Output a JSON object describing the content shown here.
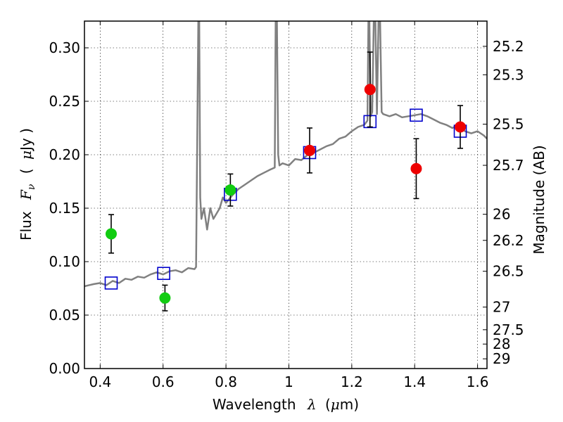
{
  "chart_data": {
    "type": "scatter",
    "title": "",
    "xlabel_prefix": "Wavelength",
    "xlabel_symbol": "λ",
    "xlabel_unit_open": "(",
    "xlabel_unit_mu": "μ",
    "xlabel_unit_rest": "m)",
    "ylabel_prefix": "Flux",
    "ylabel_symbol": "F",
    "ylabel_subscript": "ν",
    "ylabel_unit_open": "(",
    "ylabel_unit_mu": "μ",
    "ylabel_unit_rest": "Jy )",
    "y2label": "Magnitude (AB)",
    "xlim": [
      0.35,
      1.63
    ],
    "ylim": [
      0.0,
      0.325
    ],
    "grid": true,
    "x_ticks": [
      0.4,
      0.6,
      0.8,
      1.0,
      1.2,
      1.4,
      1.6
    ],
    "x_tick_labels": [
      "0.4",
      "0.6",
      "0.8",
      "1",
      "1.2",
      "1.4",
      "1.6"
    ],
    "y_ticks": [
      0.0,
      0.05,
      0.1,
      0.15,
      0.2,
      0.25,
      0.3
    ],
    "y_tick_labels": [
      "0.00",
      "0.05",
      "0.10",
      "0.15",
      "0.20",
      "0.25",
      "0.30"
    ],
    "y2_ticks": [
      {
        "label": "25.2",
        "flux": 0.3014
      },
      {
        "label": "25.3",
        "flux": 0.2748
      },
      {
        "label": "25.5",
        "flux": 0.2286
      },
      {
        "label": "25.7",
        "flux": 0.1901
      },
      {
        "label": "26",
        "flux": 0.1443
      },
      {
        "label": "26.2",
        "flux": 0.1199
      },
      {
        "label": "26.5",
        "flux": 0.091
      },
      {
        "label": "27",
        "flux": 0.0575
      },
      {
        "label": "27.5",
        "flux": 0.0363
      },
      {
        "label": "28",
        "flux": 0.0229
      },
      {
        "label": "29",
        "flux": 0.0091
      }
    ],
    "model_spectrum": {
      "color": "#808080",
      "x": [
        0.35,
        0.38,
        0.4,
        0.42,
        0.44,
        0.46,
        0.48,
        0.5,
        0.52,
        0.54,
        0.56,
        0.58,
        0.6,
        0.62,
        0.64,
        0.66,
        0.68,
        0.7,
        0.705,
        0.712,
        0.715,
        0.718,
        0.722,
        0.73,
        0.74,
        0.75,
        0.76,
        0.77,
        0.78,
        0.79,
        0.8,
        0.82,
        0.84,
        0.86,
        0.88,
        0.9,
        0.92,
        0.94,
        0.955,
        0.958,
        0.962,
        0.966,
        0.97,
        0.98,
        1.0,
        1.02,
        1.04,
        1.06,
        1.08,
        1.1,
        1.12,
        1.14,
        1.16,
        1.18,
        1.2,
        1.22,
        1.24,
        1.25,
        1.253,
        1.256,
        1.26,
        1.265,
        1.27,
        1.275,
        1.28,
        1.285,
        1.29,
        1.295,
        1.3,
        1.32,
        1.34,
        1.36,
        1.38,
        1.4,
        1.42,
        1.44,
        1.46,
        1.48,
        1.5,
        1.52,
        1.54,
        1.56,
        1.58,
        1.6,
        1.62,
        1.63
      ],
      "y": [
        0.077,
        0.079,
        0.08,
        0.078,
        0.082,
        0.08,
        0.084,
        0.083,
        0.086,
        0.085,
        0.088,
        0.09,
        0.088,
        0.091,
        0.092,
        0.09,
        0.094,
        0.093,
        0.095,
        0.325,
        0.325,
        0.16,
        0.14,
        0.15,
        0.13,
        0.15,
        0.14,
        0.145,
        0.15,
        0.16,
        0.155,
        0.162,
        0.168,
        0.172,
        0.176,
        0.18,
        0.183,
        0.186,
        0.188,
        0.325,
        0.325,
        0.2,
        0.19,
        0.192,
        0.19,
        0.196,
        0.195,
        0.2,
        0.202,
        0.205,
        0.208,
        0.21,
        0.215,
        0.217,
        0.222,
        0.226,
        0.228,
        0.232,
        0.325,
        0.325,
        0.236,
        0.24,
        0.325,
        0.325,
        0.238,
        0.325,
        0.325,
        0.24,
        0.238,
        0.236,
        0.238,
        0.235,
        0.236,
        0.237,
        0.238,
        0.236,
        0.233,
        0.23,
        0.228,
        0.225,
        0.228,
        0.222,
        0.22,
        0.222,
        0.218,
        0.215
      ]
    },
    "series": [
      {
        "marker": "square",
        "color": "#0000cc",
        "x": [
          0.435,
          0.602,
          0.814,
          1.066,
          1.258,
          1.405,
          1.545
        ],
        "y": [
          0.08,
          0.089,
          0.163,
          0.202,
          0.231,
          0.237,
          0.222
        ]
      },
      {
        "marker": "circle",
        "color": "#11cc11",
        "x": [
          0.435,
          0.606,
          0.814
        ],
        "y": [
          0.126,
          0.066,
          0.167
        ],
        "yerr": [
          0.018,
          0.012,
          0.015
        ]
      },
      {
        "marker": "circle",
        "color": "#ee0000",
        "x": [
          1.066,
          1.258,
          1.405,
          1.545
        ],
        "y": [
          0.204,
          0.261,
          0.187,
          0.226
        ],
        "yerr": [
          0.021,
          0.035,
          0.028,
          0.02
        ]
      }
    ]
  }
}
